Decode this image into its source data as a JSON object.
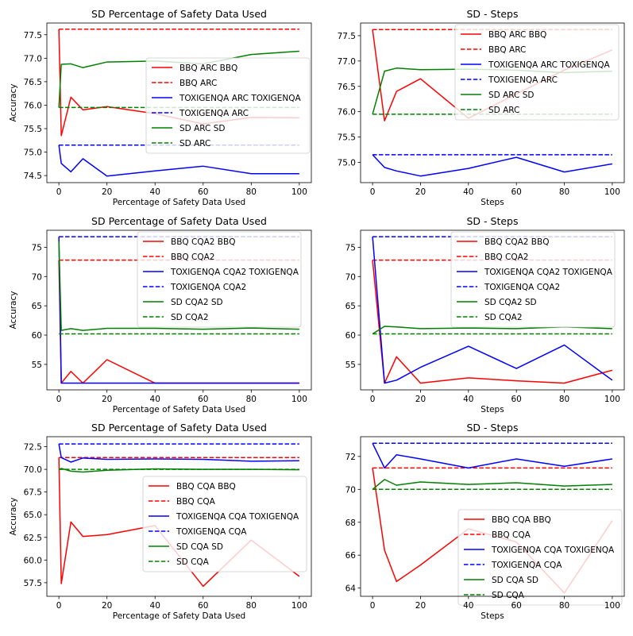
{
  "chart_data": [
    {
      "type": "line",
      "title": "SD Percentage of Safety Data Used",
      "xlabel": "Percentage of Safety Data Used",
      "ylabel": "Accuracy",
      "xlim": [
        -5,
        105
      ],
      "ylim": [
        74.35,
        77.75
      ],
      "xticks": [
        0,
        20,
        40,
        60,
        80,
        100
      ],
      "yticks": [
        74.5,
        75.0,
        75.5,
        76.0,
        76.5,
        77.0,
        77.5
      ],
      "ytick_decimals": 1,
      "legend_position": "center-right",
      "series": [
        {
          "name": "BBQ ARC BBQ",
          "color": "#ff0000",
          "dash": "solid",
          "x": [
            0,
            1,
            5,
            10,
            20,
            40,
            60,
            80,
            100
          ],
          "y": [
            77.62,
            75.35,
            76.17,
            75.9,
            75.97,
            75.82,
            75.6,
            75.74,
            75.73
          ]
        },
        {
          "name": "BBQ ARC",
          "color": "#ff0000",
          "dash": "dashed",
          "x": [
            0,
            100
          ],
          "y": [
            77.62,
            77.62
          ]
        },
        {
          "name": "TOXIGENQA ARC TOXIGENQA",
          "color": "#0000ff",
          "dash": "solid",
          "x": [
            0,
            1,
            5,
            10,
            20,
            40,
            60,
            80,
            100
          ],
          "y": [
            75.15,
            74.76,
            74.58,
            74.86,
            74.49,
            74.6,
            74.7,
            74.54,
            74.54
          ]
        },
        {
          "name": "TOXIGENQA ARC",
          "color": "#0000ff",
          "dash": "dashed",
          "x": [
            0,
            100
          ],
          "y": [
            75.15,
            75.15
          ]
        },
        {
          "name": "SD ARC SD",
          "color": "#008000",
          "dash": "solid",
          "x": [
            0,
            1,
            5,
            10,
            20,
            40,
            60,
            80,
            100
          ],
          "y": [
            75.95,
            76.87,
            76.88,
            76.8,
            76.92,
            76.94,
            76.88,
            77.08,
            77.15
          ]
        },
        {
          "name": "SD ARC",
          "color": "#008000",
          "dash": "dashed",
          "x": [
            0,
            100
          ],
          "y": [
            75.95,
            75.95
          ]
        }
      ]
    },
    {
      "type": "line",
      "title": "SD - Steps",
      "xlabel": "Steps",
      "ylabel": "",
      "xlim": [
        -5,
        105
      ],
      "ylim": [
        74.6,
        77.75
      ],
      "xticks": [
        0,
        20,
        40,
        60,
        80,
        100
      ],
      "yticks": [
        75.0,
        75.5,
        76.0,
        76.5,
        77.0,
        77.5
      ],
      "ytick_decimals": 1,
      "legend_position": "upper-right",
      "series": [
        {
          "name": "BBQ ARC BBQ",
          "color": "#ff0000",
          "dash": "solid",
          "x": [
            0,
            5,
            10,
            20,
            40,
            60,
            80,
            100
          ],
          "y": [
            77.62,
            75.82,
            76.4,
            76.65,
            75.87,
            76.35,
            76.82,
            77.22
          ]
        },
        {
          "name": "BBQ ARC",
          "color": "#ff0000",
          "dash": "dashed",
          "x": [
            0,
            100
          ],
          "y": [
            77.62,
            77.62
          ]
        },
        {
          "name": "TOXIGENQA ARC TOXIGENQA",
          "color": "#0000ff",
          "dash": "solid",
          "x": [
            0,
            5,
            10,
            20,
            40,
            60,
            80,
            100
          ],
          "y": [
            75.15,
            74.9,
            74.83,
            74.73,
            74.88,
            75.1,
            74.81,
            74.97
          ]
        },
        {
          "name": "TOXIGENQA ARC",
          "color": "#0000ff",
          "dash": "dashed",
          "x": [
            0,
            100
          ],
          "y": [
            75.15,
            75.15
          ]
        },
        {
          "name": "SD ARC SD",
          "color": "#008000",
          "dash": "solid",
          "x": [
            0,
            5,
            10,
            20,
            40,
            60,
            80,
            100
          ],
          "y": [
            75.95,
            76.8,
            76.86,
            76.83,
            76.84,
            76.82,
            76.77,
            76.8
          ]
        },
        {
          "name": "SD ARC",
          "color": "#008000",
          "dash": "dashed",
          "x": [
            0,
            100
          ],
          "y": [
            75.95,
            75.95
          ]
        }
      ]
    },
    {
      "type": "line",
      "title": "SD Percentage of Safety Data Used",
      "xlabel": "Percentage of Safety Data Used",
      "ylabel": "Accuracy",
      "xlim": [
        -5,
        105
      ],
      "ylim": [
        50.65,
        77.9
      ],
      "xticks": [
        0,
        20,
        40,
        60,
        80,
        100
      ],
      "yticks": [
        55,
        60,
        65,
        70,
        75
      ],
      "ytick_decimals": 0,
      "legend_position": "upper-right",
      "series": [
        {
          "name": "BBQ CQA2 BBQ",
          "color": "#ff0000",
          "dash": "solid",
          "x": [
            0,
            1,
            5,
            10,
            20,
            40,
            60,
            80,
            100
          ],
          "y": [
            72.8,
            51.8,
            53.8,
            51.8,
            55.8,
            51.8,
            51.8,
            51.8,
            51.8
          ]
        },
        {
          "name": "BBQ CQA2",
          "color": "#ff0000",
          "dash": "dashed",
          "x": [
            0,
            100
          ],
          "y": [
            72.8,
            72.8
          ]
        },
        {
          "name": "TOXIGENQA CQA2 TOXIGENQA",
          "color": "#0000ff",
          "dash": "solid",
          "x": [
            0,
            1,
            5,
            10,
            20,
            40,
            60,
            80,
            100
          ],
          "y": [
            76.8,
            51.8,
            51.8,
            51.8,
            51.8,
            51.8,
            51.8,
            51.8,
            51.8
          ]
        },
        {
          "name": "TOXIGENQA CQA2",
          "color": "#0000ff",
          "dash": "dashed",
          "x": [
            0,
            100
          ],
          "y": [
            76.8,
            76.8
          ]
        },
        {
          "name": "SD CQA2 SD",
          "color": "#008000",
          "dash": "solid",
          "x": [
            0,
            1,
            5,
            10,
            20,
            40,
            60,
            80,
            100
          ],
          "y": [
            76.0,
            60.8,
            61.1,
            60.8,
            61.15,
            61.15,
            61.0,
            61.2,
            61.0
          ]
        },
        {
          "name": "SD CQA2",
          "color": "#008000",
          "dash": "dashed",
          "x": [
            0,
            100
          ],
          "y": [
            60.2,
            60.2
          ]
        }
      ]
    },
    {
      "type": "line",
      "title": "SD - Steps",
      "xlabel": "Steps",
      "ylabel": "",
      "xlim": [
        -5,
        105
      ],
      "ylim": [
        50.65,
        77.9
      ],
      "xticks": [
        0,
        20,
        40,
        60,
        80,
        100
      ],
      "yticks": [
        55,
        60,
        65,
        70,
        75
      ],
      "ytick_decimals": 0,
      "legend_position": "upper-right",
      "series": [
        {
          "name": "BBQ CQA2 BBQ",
          "color": "#ff0000",
          "dash": "solid",
          "x": [
            0,
            5,
            10,
            20,
            40,
            60,
            80,
            100
          ],
          "y": [
            72.8,
            51.8,
            56.3,
            51.8,
            52.7,
            52.2,
            51.8,
            54.0
          ]
        },
        {
          "name": "BBQ CQA2",
          "color": "#ff0000",
          "dash": "dashed",
          "x": [
            0,
            100
          ],
          "y": [
            72.8,
            72.8
          ]
        },
        {
          "name": "TOXIGENQA CQA2 TOXIGENQA",
          "color": "#0000ff",
          "dash": "solid",
          "x": [
            0,
            5,
            10,
            20,
            40,
            60,
            80,
            100
          ],
          "y": [
            76.8,
            51.8,
            52.3,
            54.5,
            58.1,
            54.3,
            58.3,
            52.3
          ]
        },
        {
          "name": "TOXIGENQA CQA2",
          "color": "#0000ff",
          "dash": "dashed",
          "x": [
            0,
            100
          ],
          "y": [
            76.8,
            76.8
          ]
        },
        {
          "name": "SD CQA2 SD",
          "color": "#008000",
          "dash": "solid",
          "x": [
            0,
            5,
            10,
            20,
            40,
            60,
            80,
            100
          ],
          "y": [
            60.2,
            61.5,
            61.4,
            61.1,
            61.2,
            61.1,
            61.4,
            61.1
          ]
        },
        {
          "name": "SD CQA2",
          "color": "#008000",
          "dash": "dashed",
          "x": [
            0,
            100
          ],
          "y": [
            60.2,
            60.2
          ]
        }
      ]
    },
    {
      "type": "line",
      "title": "SD Percentage of Safety Data Used",
      "xlabel": "Percentage of Safety Data Used",
      "ylabel": "Accuracy",
      "xlim": [
        -5,
        105
      ],
      "ylim": [
        56.0,
        73.6
      ],
      "xticks": [
        0,
        20,
        40,
        60,
        80,
        100
      ],
      "yticks": [
        57.5,
        60.0,
        62.5,
        65.0,
        67.5,
        70.0,
        72.5
      ],
      "ytick_decimals": 1,
      "legend_position": "center-right",
      "series": [
        {
          "name": "BBQ CQA BBQ",
          "color": "#ff0000",
          "dash": "solid",
          "x": [
            0,
            1,
            5,
            10,
            20,
            40,
            60,
            80,
            100
          ],
          "y": [
            71.3,
            57.4,
            64.2,
            62.6,
            62.8,
            63.8,
            57.1,
            62.2,
            58.2
          ]
        },
        {
          "name": "BBQ CQA",
          "color": "#ff0000",
          "dash": "dashed",
          "x": [
            0,
            100
          ],
          "y": [
            71.3,
            71.3
          ]
        },
        {
          "name": "TOXIGENQA CQA TOXIGENQA",
          "color": "#0000ff",
          "dash": "solid",
          "x": [
            0,
            1,
            5,
            10,
            20,
            40,
            60,
            80,
            100
          ],
          "y": [
            72.8,
            71.3,
            70.8,
            71.25,
            71.1,
            71.15,
            71.1,
            70.9,
            70.95
          ]
        },
        {
          "name": "TOXIGENQA CQA",
          "color": "#0000ff",
          "dash": "dashed",
          "x": [
            0,
            100
          ],
          "y": [
            72.8,
            72.8
          ]
        },
        {
          "name": "SD CQA SD",
          "color": "#008000",
          "dash": "solid",
          "x": [
            0,
            1,
            5,
            10,
            20,
            40,
            60,
            80,
            100
          ],
          "y": [
            70.0,
            70.1,
            69.8,
            69.7,
            69.9,
            70.05,
            70.0,
            70.0,
            69.95
          ]
        },
        {
          "name": "SD CQA",
          "color": "#008000",
          "dash": "dashed",
          "x": [
            0,
            100
          ],
          "y": [
            70.0,
            70.0
          ]
        }
      ]
    },
    {
      "type": "line",
      "title": "SD - Steps",
      "xlabel": "Steps",
      "ylabel": "",
      "xlim": [
        -5,
        105
      ],
      "ylim": [
        63.5,
        73.2
      ],
      "xticks": [
        0,
        20,
        40,
        60,
        80,
        100
      ],
      "yticks": [
        64,
        66,
        68,
        70,
        72
      ],
      "ytick_decimals": 0,
      "legend_position": "lower-right",
      "series": [
        {
          "name": "BBQ CQA BBQ",
          "color": "#ff0000",
          "dash": "solid",
          "x": [
            0,
            5,
            10,
            20,
            40,
            60,
            80,
            100
          ],
          "y": [
            71.3,
            66.3,
            64.4,
            65.4,
            67.6,
            66.8,
            63.7,
            68.1
          ]
        },
        {
          "name": "BBQ CQA",
          "color": "#ff0000",
          "dash": "dashed",
          "x": [
            0,
            100
          ],
          "y": [
            71.3,
            71.3
          ]
        },
        {
          "name": "TOXIGENQA CQA TOXIGENQA",
          "color": "#0000ff",
          "dash": "solid",
          "x": [
            0,
            5,
            10,
            20,
            40,
            60,
            80,
            100
          ],
          "y": [
            72.8,
            71.3,
            72.1,
            71.85,
            71.3,
            71.85,
            71.4,
            71.85
          ]
        },
        {
          "name": "TOXIGENQA CQA",
          "color": "#0000ff",
          "dash": "dashed",
          "x": [
            0,
            100
          ],
          "y": [
            72.8,
            72.8
          ]
        },
        {
          "name": "SD CQA SD",
          "color": "#008000",
          "dash": "solid",
          "x": [
            0,
            5,
            10,
            20,
            40,
            60,
            80,
            100
          ],
          "y": [
            70.0,
            70.6,
            70.25,
            70.45,
            70.3,
            70.4,
            70.2,
            70.3
          ]
        },
        {
          "name": "SD CQA",
          "color": "#008000",
          "dash": "dashed",
          "x": [
            0,
            100
          ],
          "y": [
            70.0,
            70.0
          ]
        }
      ]
    }
  ]
}
